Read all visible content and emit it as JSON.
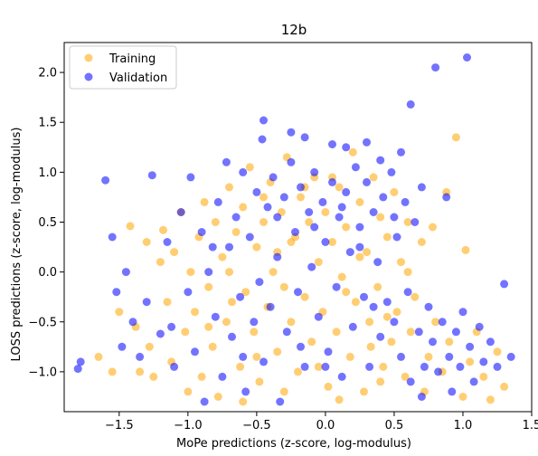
{
  "chart_data": {
    "type": "scatter",
    "title": "12b",
    "xlabel": "MoPe predictions (z-score, log-modulus)",
    "ylabel": "LOSS predictions (z-score, log-modulus)",
    "xlim": [
      -1.9,
      1.5
    ],
    "ylim": [
      -1.4,
      2.3
    ],
    "xticks": [
      -1.5,
      -1.0,
      -0.5,
      0.0,
      0.5,
      1.0,
      1.5
    ],
    "yticks": [
      -1.0,
      -0.5,
      0.0,
      0.5,
      1.0,
      1.5,
      2.0
    ],
    "xtick_labels": [
      "−1.5",
      "−1.0",
      "−0.5",
      "0.0",
      "0.5",
      "1.0",
      "1.5"
    ],
    "ytick_labels": [
      "−1.0",
      "−0.5",
      "0.0",
      "0.5",
      "1.0",
      "1.5",
      "2.0"
    ],
    "grid": false,
    "legend_position": "top-left",
    "series": [
      {
        "name": "Training",
        "color": "#FFA500",
        "points": [
          [
            -1.65,
            -0.85
          ],
          [
            -1.55,
            -1.0
          ],
          [
            -1.5,
            -0.4
          ],
          [
            -1.42,
            0.46
          ],
          [
            -1.38,
            -0.55
          ],
          [
            -1.35,
            -1.0
          ],
          [
            -1.3,
            0.3
          ],
          [
            -1.28,
            -0.75
          ],
          [
            -1.25,
            -1.05
          ],
          [
            -1.2,
            0.1
          ],
          [
            -1.18,
            0.42
          ],
          [
            -1.15,
            -0.3
          ],
          [
            -1.12,
            -0.9
          ],
          [
            -1.1,
            0.2
          ],
          [
            -1.05,
            0.6
          ],
          [
            -1.02,
            -0.6
          ],
          [
            -1.0,
            -1.2
          ],
          [
            -0.98,
            0.0
          ],
          [
            -0.95,
            -0.4
          ],
          [
            -0.92,
            0.35
          ],
          [
            -0.9,
            -1.05
          ],
          [
            -0.88,
            0.7
          ],
          [
            -0.85,
            -0.15
          ],
          [
            -0.82,
            -0.75
          ],
          [
            -0.8,
            0.5
          ],
          [
            -0.78,
            -1.25
          ],
          [
            -0.75,
            0.15
          ],
          [
            -0.72,
            -0.5
          ],
          [
            -0.7,
            0.85
          ],
          [
            -0.68,
            -0.3
          ],
          [
            -0.65,
            0.4
          ],
          [
            -0.62,
            -0.95
          ],
          [
            -0.6,
            0.65
          ],
          [
            -0.58,
            -0.2
          ],
          [
            -0.55,
            1.05
          ],
          [
            -0.52,
            -0.6
          ],
          [
            -0.5,
            0.25
          ],
          [
            -0.48,
            -1.1
          ],
          [
            -0.45,
            0.5
          ],
          [
            -0.42,
            -0.35
          ],
          [
            -0.4,
            0.9
          ],
          [
            -0.38,
            0.0
          ],
          [
            -0.35,
            -0.8
          ],
          [
            -0.32,
            0.6
          ],
          [
            -0.3,
            -0.15
          ],
          [
            -0.28,
            1.15
          ],
          [
            -0.25,
            -0.5
          ],
          [
            -0.22,
            0.35
          ],
          [
            -0.2,
            -1.0
          ],
          [
            -0.18,
            0.75
          ],
          [
            -0.15,
            -0.25
          ],
          [
            -0.12,
            0.5
          ],
          [
            -0.1,
            -0.7
          ],
          [
            -0.08,
            0.95
          ],
          [
            -0.05,
            0.1
          ],
          [
            -0.02,
            -0.4
          ],
          [
            0.0,
            0.6
          ],
          [
            0.02,
            -1.15
          ],
          [
            0.05,
            0.3
          ],
          [
            0.08,
            -0.6
          ],
          [
            0.1,
            0.85
          ],
          [
            0.12,
            -0.05
          ],
          [
            0.15,
            0.45
          ],
          [
            0.18,
            -0.85
          ],
          [
            0.2,
            1.2
          ],
          [
            0.22,
            -0.3
          ],
          [
            0.25,
            0.7
          ],
          [
            0.28,
            -1.2
          ],
          [
            0.3,
            0.2
          ],
          [
            0.32,
            -0.5
          ],
          [
            0.35,
            0.95
          ],
          [
            0.38,
            -0.15
          ],
          [
            0.4,
            0.55
          ],
          [
            0.42,
            -0.95
          ],
          [
            0.45,
            0.35
          ],
          [
            0.48,
            -0.7
          ],
          [
            0.5,
            0.8
          ],
          [
            0.52,
            -0.4
          ],
          [
            0.55,
            0.1
          ],
          [
            0.58,
            -1.05
          ],
          [
            0.6,
            0.5
          ],
          [
            0.62,
            -0.6
          ],
          [
            0.65,
            -0.25
          ],
          [
            0.7,
            0.3
          ],
          [
            0.72,
            -1.2
          ],
          [
            0.75,
            -0.85
          ],
          [
            0.78,
            0.45
          ],
          [
            0.8,
            -0.5
          ],
          [
            0.85,
            -1.0
          ],
          [
            0.88,
            0.8
          ],
          [
            0.9,
            -0.7
          ],
          [
            0.95,
            1.35
          ],
          [
            1.0,
            -1.25
          ],
          [
            1.02,
            0.22
          ],
          [
            1.05,
            -0.9
          ],
          [
            1.1,
            -0.6
          ],
          [
            1.15,
            -1.05
          ],
          [
            1.2,
            -1.28
          ],
          [
            1.25,
            -0.8
          ],
          [
            1.3,
            -1.15
          ],
          [
            -0.6,
            -1.3
          ],
          [
            -0.3,
            -1.2
          ],
          [
            0.1,
            -1.28
          ],
          [
            0.4,
            -1.1
          ],
          [
            -0.45,
            0.75
          ],
          [
            -0.15,
            0.85
          ],
          [
            0.25,
            0.15
          ],
          [
            -0.7,
            0.0
          ],
          [
            -0.25,
            0.3
          ],
          [
            0.15,
            -0.2
          ],
          [
            0.6,
            0.0
          ],
          [
            -0.85,
            -0.55
          ],
          [
            -0.5,
            -0.85
          ],
          [
            0.05,
            0.95
          ],
          [
            0.33,
            -0.75
          ],
          [
            -0.05,
            -0.95
          ],
          [
            -0.35,
            0.2
          ],
          [
            0.45,
            -0.45
          ]
        ]
      },
      {
        "name": "Validation",
        "color": "#0000FF",
        "points": [
          [
            -1.8,
            -0.97
          ],
          [
            -1.78,
            -0.9
          ],
          [
            -1.6,
            0.92
          ],
          [
            -1.55,
            0.35
          ],
          [
            -1.52,
            -0.2
          ],
          [
            -1.48,
            -0.75
          ],
          [
            -1.45,
            0.0
          ],
          [
            -1.4,
            -0.5
          ],
          [
            -1.35,
            -0.85
          ],
          [
            -1.3,
            -0.3
          ],
          [
            -1.26,
            0.97
          ],
          [
            -1.2,
            -0.62
          ],
          [
            -1.15,
            0.3
          ],
          [
            -1.1,
            -0.95
          ],
          [
            -1.05,
            0.6
          ],
          [
            -1.0,
            -0.2
          ],
          [
            -0.98,
            0.95
          ],
          [
            -0.95,
            -0.8
          ],
          [
            -0.9,
            0.4
          ],
          [
            -0.88,
            -1.3
          ],
          [
            -0.85,
            0.0
          ],
          [
            -0.8,
            -0.45
          ],
          [
            -0.78,
            0.7
          ],
          [
            -0.75,
            -1.05
          ],
          [
            -0.72,
            1.1
          ],
          [
            -0.7,
            0.25
          ],
          [
            -0.68,
            -0.65
          ],
          [
            -0.65,
            0.55
          ],
          [
            -0.62,
            -0.25
          ],
          [
            -0.6,
            1.0
          ],
          [
            -0.58,
            -1.2
          ],
          [
            -0.55,
            0.35
          ],
          [
            -0.52,
            -0.5
          ],
          [
            -0.5,
            0.8
          ],
          [
            -0.48,
            -0.1
          ],
          [
            -0.46,
            1.33
          ],
          [
            -0.45,
            -0.9
          ],
          [
            -0.42,
            0.65
          ],
          [
            -0.4,
            -0.35
          ],
          [
            -0.38,
            0.95
          ],
          [
            -0.35,
            0.15
          ],
          [
            -0.33,
            -1.3
          ],
          [
            -0.3,
            0.75
          ],
          [
            -0.28,
            -0.6
          ],
          [
            -0.25,
            1.1
          ],
          [
            -0.22,
            0.4
          ],
          [
            -0.2,
            -0.2
          ],
          [
            -0.18,
            0.85
          ],
          [
            -0.15,
            -0.95
          ],
          [
            -0.12,
            0.6
          ],
          [
            -0.1,
            0.05
          ],
          [
            -0.08,
            1.0
          ],
          [
            -0.05,
            -0.45
          ],
          [
            -0.02,
            0.7
          ],
          [
            0.0,
            0.3
          ],
          [
            0.02,
            -0.8
          ],
          [
            0.05,
            0.9
          ],
          [
            0.08,
            -0.15
          ],
          [
            0.1,
            0.55
          ],
          [
            0.12,
            -1.05
          ],
          [
            0.15,
            0.8
          ],
          [
            0.18,
            0.2
          ],
          [
            0.2,
            -0.55
          ],
          [
            0.22,
            1.05
          ],
          [
            0.25,
            0.45
          ],
          [
            0.28,
            -0.25
          ],
          [
            0.3,
            0.9
          ],
          [
            0.32,
            -0.95
          ],
          [
            0.35,
            0.6
          ],
          [
            0.38,
            0.1
          ],
          [
            0.4,
            -0.65
          ],
          [
            0.42,
            0.75
          ],
          [
            0.45,
            -0.3
          ],
          [
            0.48,
            1.0
          ],
          [
            0.5,
            -0.5
          ],
          [
            0.52,
            0.35
          ],
          [
            0.55,
            -0.85
          ],
          [
            0.58,
            0.7
          ],
          [
            0.6,
            -0.2
          ],
          [
            0.62,
            -1.1
          ],
          [
            0.65,
            0.5
          ],
          [
            0.68,
            -0.6
          ],
          [
            0.7,
            0.85
          ],
          [
            0.72,
            -0.95
          ],
          [
            0.75,
            -0.35
          ],
          [
            0.78,
            -0.7
          ],
          [
            0.8,
            2.05
          ],
          [
            0.82,
            -1.0
          ],
          [
            0.85,
            -0.5
          ],
          [
            0.88,
            0.75
          ],
          [
            0.9,
            -0.85
          ],
          [
            0.92,
            -1.2
          ],
          [
            0.95,
            -0.6
          ],
          [
            0.98,
            -0.95
          ],
          [
            1.0,
            -0.4
          ],
          [
            1.03,
            2.15
          ],
          [
            1.05,
            -0.75
          ],
          [
            1.08,
            -1.1
          ],
          [
            1.12,
            -0.55
          ],
          [
            1.15,
            -0.9
          ],
          [
            1.2,
            -0.7
          ],
          [
            1.25,
            -0.95
          ],
          [
            1.3,
            -0.12
          ],
          [
            1.35,
            -0.85
          ],
          [
            -0.45,
            1.52
          ],
          [
            -0.25,
            1.4
          ],
          [
            -0.15,
            1.35
          ],
          [
            0.05,
            1.28
          ],
          [
            0.15,
            1.25
          ],
          [
            0.3,
            1.3
          ],
          [
            0.4,
            1.12
          ],
          [
            0.55,
            1.2
          ],
          [
            0.62,
            1.68
          ],
          [
            -0.08,
            0.45
          ],
          [
            0.12,
            0.65
          ],
          [
            0.25,
            0.25
          ],
          [
            -0.35,
            0.55
          ],
          [
            0.0,
            -0.95
          ],
          [
            -0.6,
            -0.85
          ],
          [
            0.35,
            -0.35
          ],
          [
            0.7,
            -1.25
          ],
          [
            -1.12,
            -0.55
          ],
          [
            -0.82,
            0.25
          ],
          [
            -0.18,
            -0.75
          ],
          [
            0.5,
            0.55
          ]
        ]
      }
    ]
  }
}
